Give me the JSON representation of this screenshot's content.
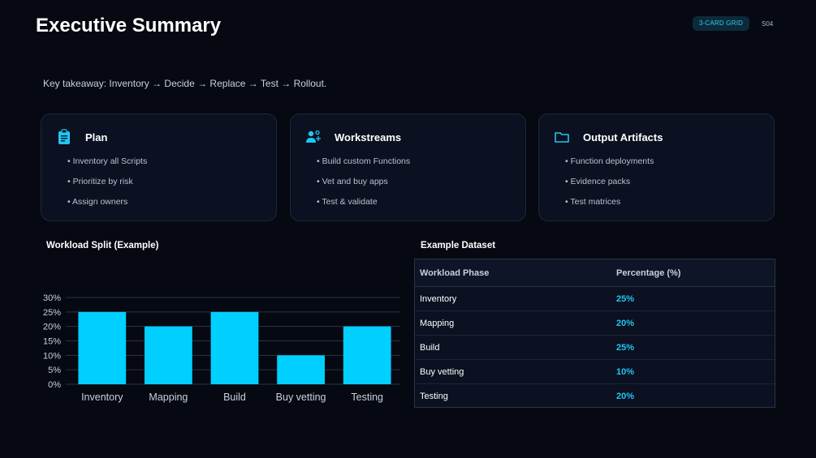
{
  "header": {
    "title": "Executive Summary",
    "badge": "3-CARD GRID",
    "slide_number": "S04"
  },
  "takeaway": "Key takeaway: Inventory → Decide → Replace → Test → Rollout.",
  "cards": [
    {
      "icon": "clipboard-icon",
      "title": "Plan",
      "items": [
        "Inventory all Scripts",
        "Prioritize by risk",
        "Assign owners"
      ]
    },
    {
      "icon": "team-icon",
      "title": "Workstreams",
      "items": [
        "Build custom Functions",
        "Vet and buy apps",
        "Test & validate"
      ]
    },
    {
      "icon": "folder-icon",
      "title": "Output Artifacts",
      "items": [
        "Function deployments",
        "Evidence packs",
        "Test matrices"
      ]
    }
  ],
  "chart_section_title": "Workload Split (Example)",
  "table_section_title": "Example Dataset",
  "chart_data": {
    "type": "bar",
    "categories": [
      "Inventory",
      "Mapping",
      "Build",
      "Buy vetting",
      "Testing"
    ],
    "values": [
      25,
      20,
      25,
      10,
      20
    ],
    "ylim": [
      0,
      30
    ],
    "yticks": [
      "0%",
      "5%",
      "10%",
      "15%",
      "20%",
      "25%",
      "30%"
    ],
    "xlabel": "",
    "ylabel": "",
    "grid": true,
    "bar_color": "#00cfff"
  },
  "table": {
    "columns": [
      "Workload Phase",
      "Percentage (%)"
    ],
    "rows": [
      [
        "Inventory",
        "25%"
      ],
      [
        "Mapping",
        "20%"
      ],
      [
        "Build",
        "25%"
      ],
      [
        "Buy vetting",
        "10%"
      ],
      [
        "Testing",
        "20%"
      ]
    ]
  },
  "colors": {
    "accent": "#1fc6f2",
    "background": "#060912",
    "card": "#0b1120"
  }
}
